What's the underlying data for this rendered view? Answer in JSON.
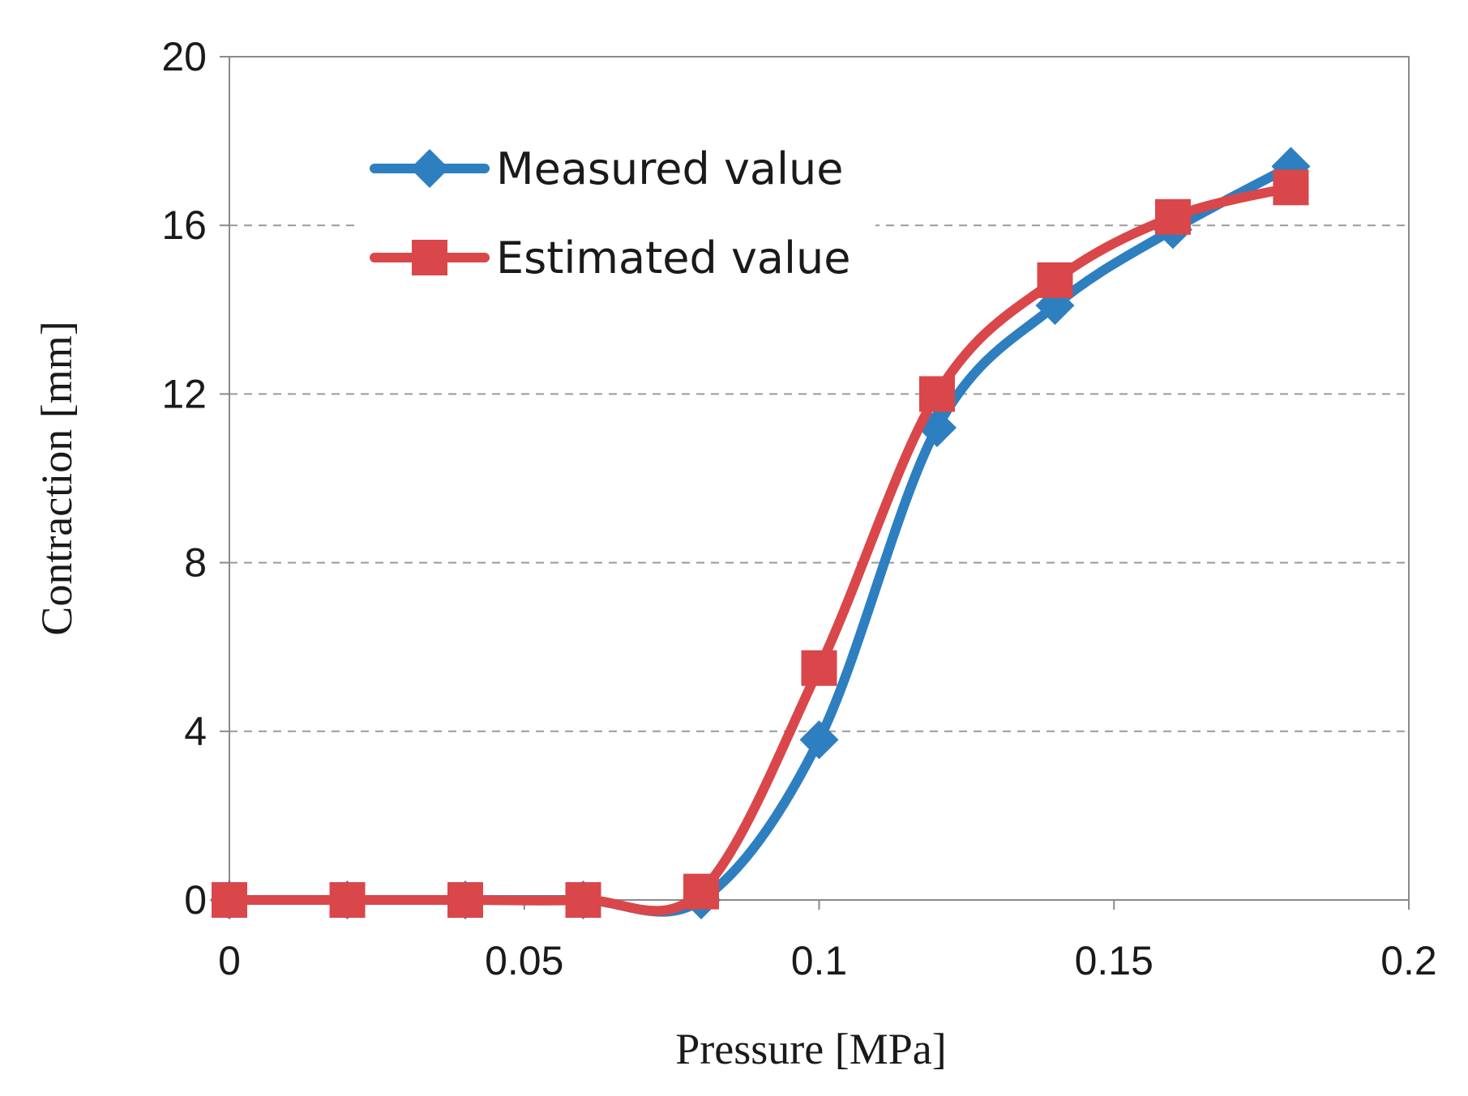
{
  "chart_data": {
    "type": "line",
    "title": "",
    "xlabel": "Pressure [MPa]",
    "ylabel": "Contraction [mm]",
    "xlim": [
      0,
      0.2
    ],
    "ylim": [
      0,
      20
    ],
    "xticks": [
      0,
      0.05,
      0.1,
      0.15,
      0.2
    ],
    "xtick_labels": [
      "0",
      "0.05",
      "0.1",
      "0.15",
      "0.2"
    ],
    "yticks": [
      0,
      4,
      8,
      12,
      16,
      20
    ],
    "ytick_labels": [
      "0",
      "4",
      "8",
      "12",
      "16",
      "20"
    ],
    "grid": "horizontal dashed",
    "legend_position": "top-left",
    "series": [
      {
        "name": "Measured value",
        "color": "#2E7FC0",
        "marker": "diamond",
        "x": [
          0,
          0.02,
          0.04,
          0.06,
          0.08,
          0.1,
          0.12,
          0.14,
          0.16,
          0.18
        ],
        "y": [
          0,
          0,
          0,
          0,
          0,
          3.8,
          11.2,
          14.1,
          15.9,
          17.4
        ]
      },
      {
        "name": "Estimated value",
        "color": "#D9474A",
        "marker": "square",
        "x": [
          0,
          0.02,
          0.04,
          0.06,
          0.08,
          0.1,
          0.12,
          0.14,
          0.16,
          0.18
        ],
        "y": [
          0,
          0,
          0,
          0,
          0.2,
          5.5,
          12.0,
          14.7,
          16.2,
          16.9
        ]
      }
    ]
  }
}
